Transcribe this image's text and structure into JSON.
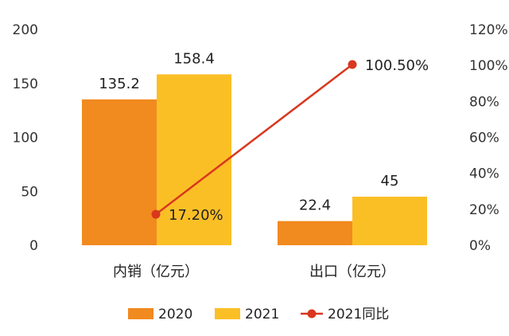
{
  "chart_data": {
    "type": "bar",
    "categories": [
      "内销（亿元）",
      "出口（亿元）"
    ],
    "series": [
      {
        "name": "2020",
        "values": [
          135.2,
          22.4
        ],
        "color": "#F18A1F",
        "axis": "left",
        "labels": [
          "135.2",
          "22.4"
        ]
      },
      {
        "name": "2021",
        "values": [
          158.4,
          45
        ],
        "color": "#FBBF26",
        "axis": "left",
        "labels": [
          "158.4",
          "45"
        ]
      },
      {
        "name": "2021同比",
        "type": "line",
        "values": [
          17.2,
          100.5
        ],
        "color": "#D9371E",
        "axis": "right",
        "labels": [
          "17.20%",
          "100.50%"
        ]
      }
    ],
    "y_left": {
      "min": 0,
      "max": 200,
      "ticks": [
        "0",
        "50",
        "100",
        "150",
        "200"
      ]
    },
    "y_right": {
      "min": 0,
      "max": 120,
      "ticks": [
        "0%",
        "20%",
        "40%",
        "60%",
        "80%",
        "100%",
        "120%"
      ]
    },
    "title": "",
    "xlabel": "",
    "ylabel": "",
    "grid": false,
    "legend_position": "bottom"
  }
}
